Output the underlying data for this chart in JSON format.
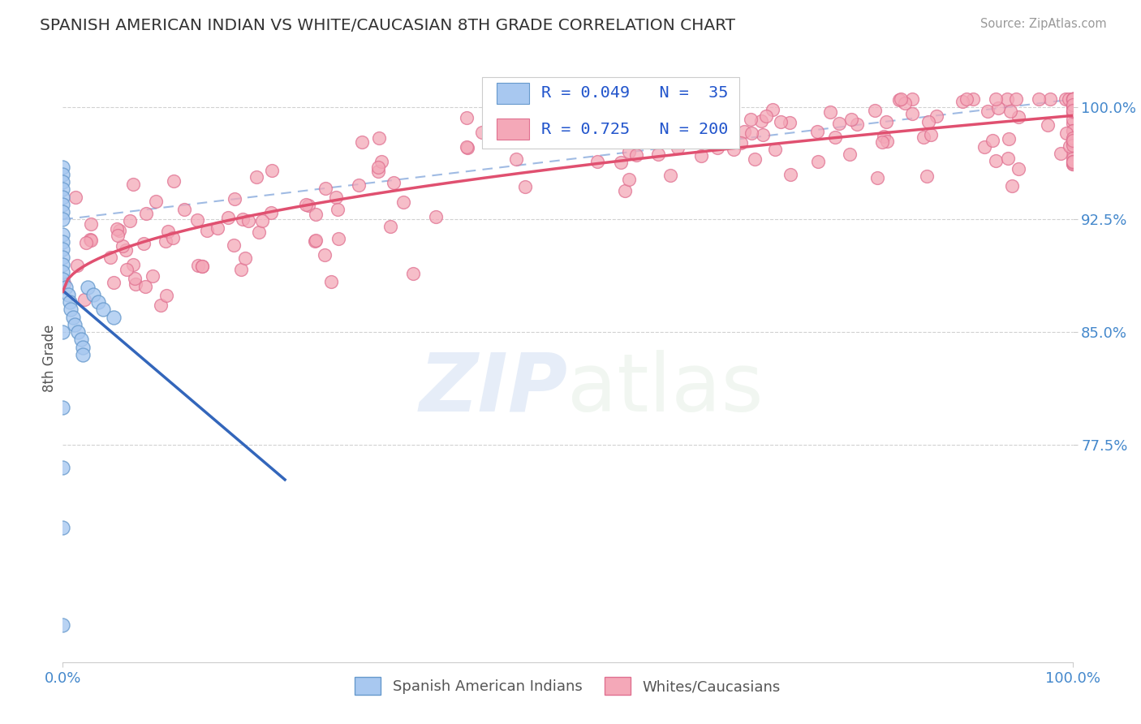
{
  "title": "SPANISH AMERICAN INDIAN VS WHITE/CAUCASIAN 8TH GRADE CORRELATION CHART",
  "source": "Source: ZipAtlas.com",
  "ylabel": "8th Grade",
  "xlim": [
    0.0,
    1.0
  ],
  "ylim": [
    0.63,
    1.035
  ],
  "yticks": [
    0.775,
    0.85,
    0.925,
    1.0
  ],
  "ytick_labels": [
    "77.5%",
    "85.0%",
    "92.5%",
    "100.0%"
  ],
  "xticks": [
    0.0,
    1.0
  ],
  "xtick_labels": [
    "0.0%",
    "100.0%"
  ],
  "blue_R": 0.049,
  "blue_N": 35,
  "pink_R": 0.725,
  "pink_N": 200,
  "blue_color": "#A8C8F0",
  "pink_color": "#F4A8B8",
  "blue_edge": "#6699CC",
  "pink_edge": "#E07090",
  "legend_label_blue": "Spanish American Indians",
  "legend_label_pink": "Whites/Caucasians",
  "watermark_zip": "ZIP",
  "watermark_atlas": "atlas",
  "background_color": "#ffffff",
  "grid_color": "#cccccc",
  "title_color": "#333333",
  "tick_color": "#4488cc",
  "stats_color": "#2255cc"
}
